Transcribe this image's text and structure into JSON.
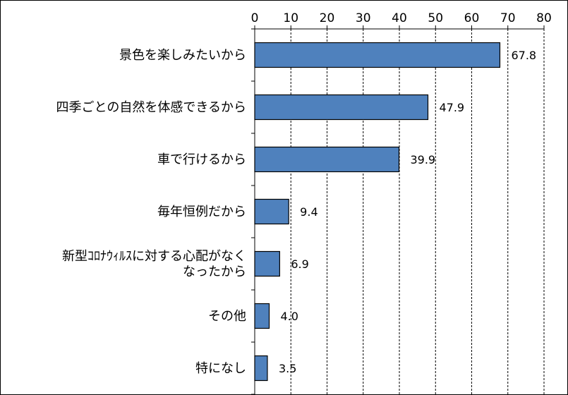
{
  "chart_data": {
    "type": "bar",
    "orientation": "horizontal",
    "categories": [
      [
        "景色を楽しみたいから"
      ],
      [
        "四季ごとの自然を体感できるから"
      ],
      [
        "車で行けるから"
      ],
      [
        "毎年恒例だから"
      ],
      [
        "新型ｺﾛﾅｳｨﾙｽに対する心配がなく",
        "なったから"
      ],
      [
        "その他"
      ],
      [
        "特になし"
      ]
    ],
    "values": [
      67.8,
      47.9,
      39.9,
      9.4,
      6.9,
      4.0,
      3.5
    ],
    "value_labels": [
      "67.8",
      "47.9",
      "39.9",
      "9.4",
      "6.9",
      "4.0",
      "3.5"
    ],
    "xlim": [
      0,
      80
    ],
    "ticks": [
      0,
      10,
      20,
      30,
      40,
      50,
      60,
      70,
      80
    ],
    "tick_position": "top",
    "grid": "vertical dashed",
    "bar_color": "#4f81bd",
    "bar_edge_color": "#000000",
    "title": "",
    "xlabel": "",
    "ylabel": ""
  }
}
